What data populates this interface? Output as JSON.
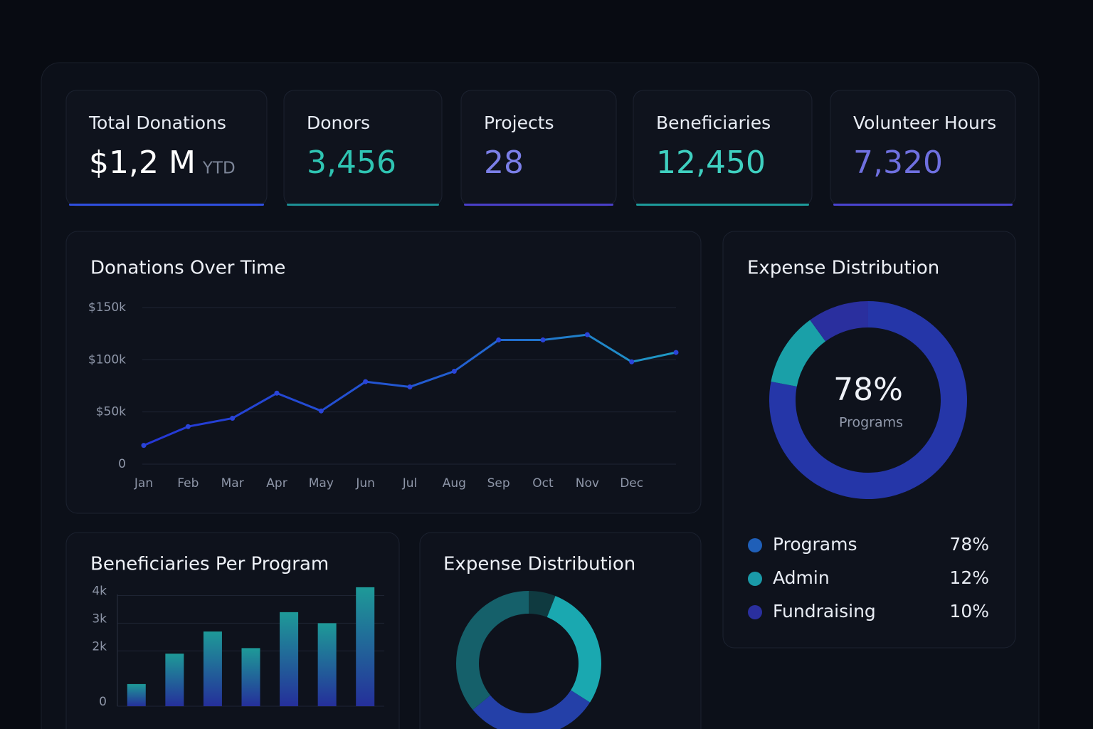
{
  "kpis": [
    {
      "label": "Total Donations",
      "value": "$1,2 M",
      "suffix": "YTD",
      "color": "#ffffff",
      "accent": "#2f4fe0"
    },
    {
      "label": "Donors",
      "value": "3,456",
      "color": "#2fc4b2",
      "accent": "#1d8f94"
    },
    {
      "label": "Projects",
      "value": "28",
      "color": "#7b7fe8",
      "accent": "#4a3fc8"
    },
    {
      "label": "Beneficiaries",
      "value": "12,450",
      "color": "#3fd0c0",
      "accent": "#1d9a9a"
    },
    {
      "label": "Volunteer Hours",
      "value": "7,320",
      "color": "#6f70e0",
      "accent": "#4a44d0"
    }
  ],
  "chart_data": [
    {
      "type": "line",
      "title": "Donations Over Time",
      "categories": [
        "Jan",
        "Feb",
        "Mar",
        "Apr",
        "May",
        "Jun",
        "Jul",
        "Aug",
        "Sep",
        "Oct",
        "Nov",
        "Dec",
        null
      ],
      "values": [
        18000,
        36000,
        44000,
        68000,
        51000,
        79000,
        74000,
        89000,
        119000,
        119000,
        124000,
        98000,
        107000
      ],
      "color": "#2a44d8",
      "ylim": [
        0,
        150000
      ],
      "yticks": [
        0,
        {
          "value": 50000,
          "label": "$50k"
        },
        {
          "value": 100000,
          "label": "$100k"
        },
        {
          "value": 150000,
          "label": "$150k"
        }
      ],
      "grid": true
    },
    {
      "type": "bar",
      "title": "Beneficiaries Per Program",
      "categories": [
        null,
        null,
        null,
        null,
        null,
        null,
        null
      ],
      "values": [
        800,
        1900,
        2700,
        2100,
        3400,
        3000,
        4300
      ],
      "color": "#1e8f98",
      "ylim": [
        0,
        4400
      ],
      "yticks": [
        0,
        {
          "value": 2000,
          "label": "2k"
        },
        {
          "value": 3000,
          "label": "3k"
        },
        {
          "value": 4000,
          "label": "4k"
        }
      ],
      "grid": true
    },
    {
      "type": "pie",
      "title": "Expense Distribution",
      "categories": [
        "Programs",
        "Admin",
        "Fundraising"
      ],
      "values": [
        78,
        12,
        10
      ],
      "value_labels": [
        "78%",
        "12%",
        "10%"
      ],
      "colors": [
        "#2536a8",
        "#1aa0a8",
        "#2a2f9e"
      ],
      "legend_colors": [
        "#1f5fb8",
        "#1a9aa8",
        "#2a2f9e"
      ]
    },
    {
      "type": "pie",
      "title": "Expense Distribution",
      "categories": [
        null,
        null,
        null,
        null
      ],
      "values": [
        6,
        28,
        30,
        36
      ],
      "colors": [
        "#0f3a40",
        "#1aa8b0",
        "#2440a8",
        "#15606a"
      ]
    }
  ]
}
